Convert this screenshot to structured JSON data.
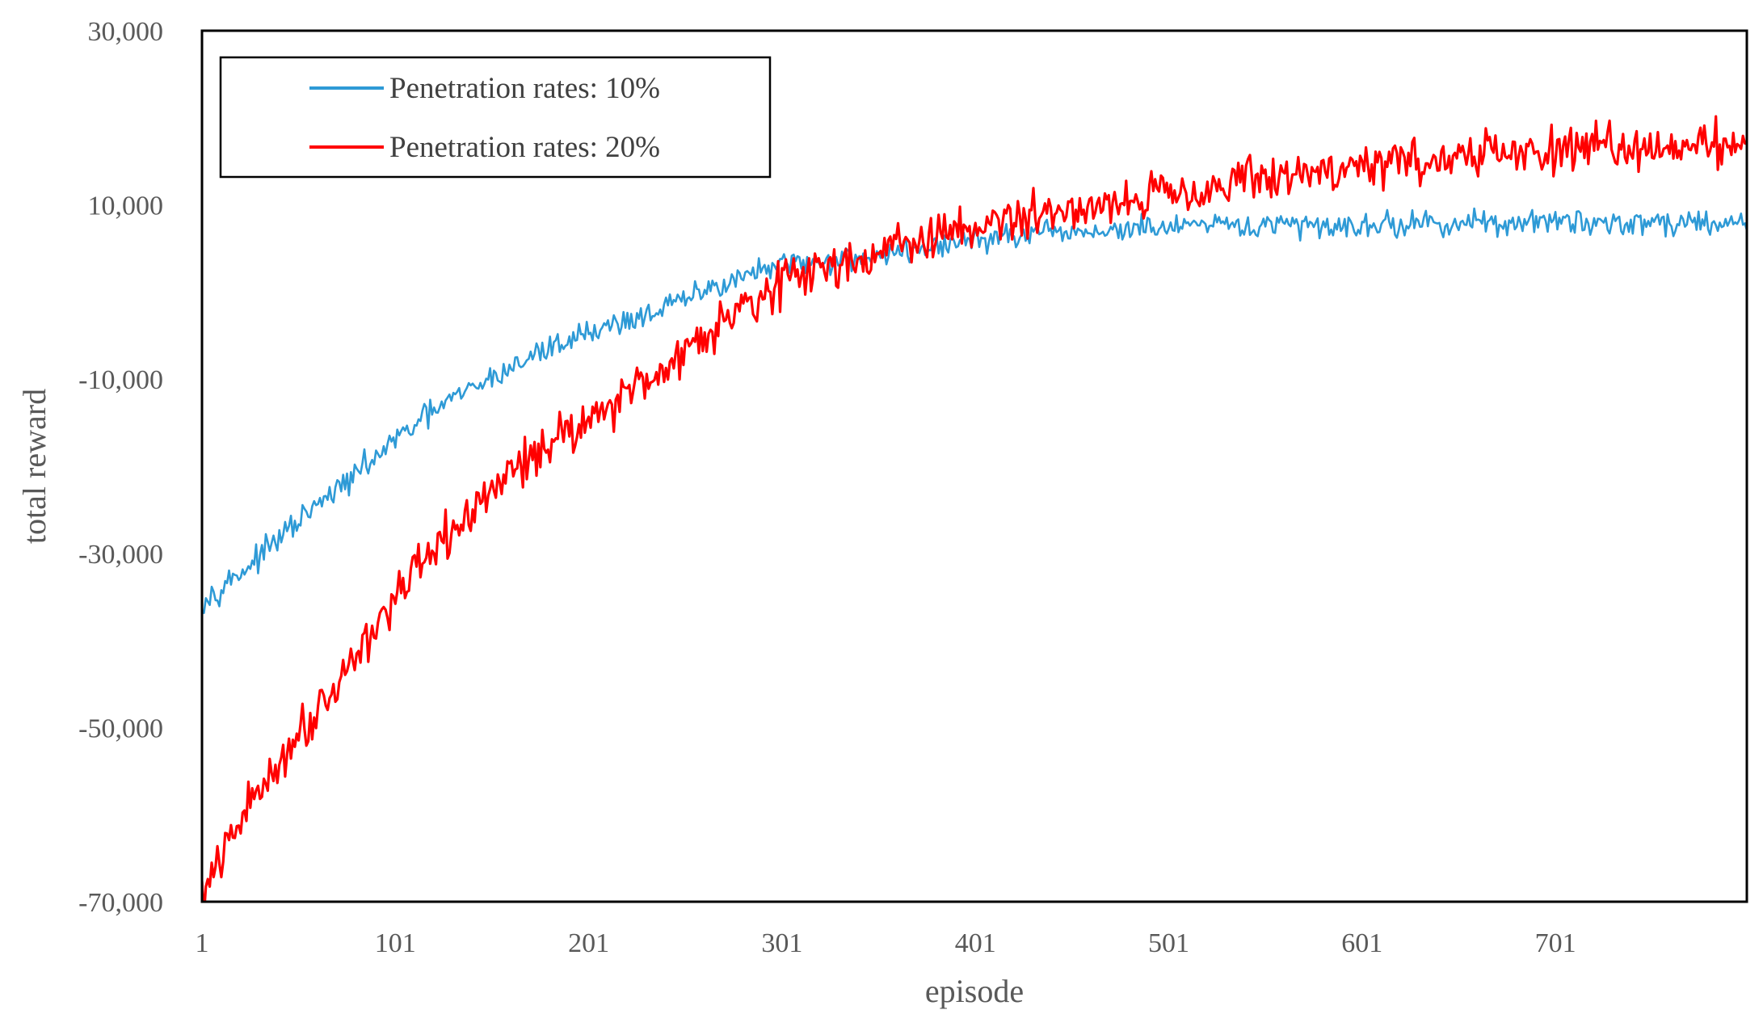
{
  "chart_data": {
    "type": "line",
    "title": "",
    "xlabel": "episode",
    "ylabel": "total reward",
    "xlim": [
      1,
      800
    ],
    "ylim": [
      -70000,
      30000
    ],
    "x_ticks": [
      1,
      101,
      201,
      301,
      401,
      501,
      601,
      701
    ],
    "x_tick_labels": [
      "1",
      "101",
      "201",
      "301",
      "401",
      "501",
      "601",
      "701"
    ],
    "y_ticks": [
      30000,
      10000,
      -10000,
      -30000,
      -50000,
      -70000
    ],
    "y_tick_labels": [
      "30,000",
      "10,000",
      "-10,000",
      "-30,000",
      "-50,000",
      "-70,000"
    ],
    "grid": false,
    "legend_position": "top-left",
    "series": [
      {
        "name": "Penetration rates: 10%",
        "color": "#2E9AD6",
        "noise": 1100,
        "x": [
          1,
          25,
          50,
          75,
          101,
          125,
          150,
          175,
          201,
          225,
          250,
          275,
          301,
          325,
          350,
          375,
          401,
          450,
          500,
          550,
          600,
          650,
          700,
          750,
          800
        ],
        "values": [
          -35500,
          -31500,
          -26500,
          -22000,
          -17000,
          -13000,
          -10000,
          -7000,
          -4500,
          -3000,
          -1000,
          1500,
          3000,
          3600,
          4200,
          5000,
          6000,
          6800,
          7400,
          7600,
          7700,
          7900,
          8000,
          8000,
          8100
        ]
      },
      {
        "name": "Penetration rates: 20%",
        "color": "#FF0000",
        "noise": 2000,
        "x": [
          1,
          25,
          50,
          75,
          101,
          125,
          150,
          175,
          201,
          225,
          250,
          275,
          301,
          325,
          350,
          375,
          401,
          450,
          500,
          550,
          600,
          650,
          700,
          750,
          800
        ],
        "values": [
          -69500,
          -59000,
          -51000,
          -43500,
          -35000,
          -29000,
          -23000,
          -18000,
          -14500,
          -11000,
          -7000,
          -2000,
          1000,
          3000,
          4500,
          6000,
          7500,
          9500,
          11500,
          13000,
          14500,
          15500,
          16200,
          16800,
          17200
        ]
      }
    ]
  }
}
